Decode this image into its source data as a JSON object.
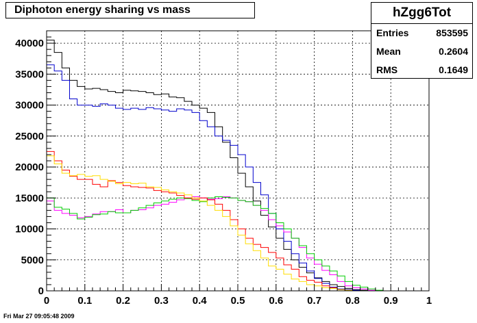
{
  "title": "Diphoton energy sharing vs mass",
  "stats": {
    "name": "hZgg6Tot",
    "rows": [
      {
        "key": "Entries",
        "value": "853595"
      },
      {
        "key": "Mean",
        "value": "0.2604"
      },
      {
        "key": "RMS",
        "value": "0.1649"
      }
    ]
  },
  "datestamp": "Fri Mar 27 09:05:48 2009",
  "chart_data": {
    "type": "line",
    "step": true,
    "title": "Diphoton energy sharing vs mass",
    "xlim": [
      0,
      1
    ],
    "ylim": [
      0,
      42000
    ],
    "xticks": [
      "0",
      "0.1",
      "0.2",
      "0.3",
      "0.4",
      "0.5",
      "0.6",
      "0.7",
      "0.8",
      "0.9",
      "1"
    ],
    "yticks": [
      "0",
      "5000",
      "10000",
      "15000",
      "20000",
      "25000",
      "30000",
      "35000",
      "40000"
    ],
    "grid": true,
    "bins": 50,
    "series": [
      {
        "color": "#000000",
        "values": [
          40500,
          38500,
          36000,
          34000,
          33000,
          32600,
          32700,
          32500,
          32200,
          32000,
          32400,
          32300,
          32200,
          32000,
          31700,
          31800,
          31300,
          31200,
          30600,
          30000,
          29500,
          28800,
          26500,
          24000,
          21500,
          19000,
          16800,
          14500,
          12200,
          10300,
          8500,
          6700,
          5000,
          3800,
          2900,
          2100,
          1500,
          1000,
          700,
          400,
          200,
          100,
          0,
          0,
          0,
          0,
          0,
          0,
          0,
          0
        ]
      },
      {
        "color": "#0000cc",
        "values": [
          36500,
          35500,
          34000,
          31000,
          30000,
          30000,
          29800,
          30200,
          30000,
          29500,
          29300,
          29500,
          29300,
          29600,
          29400,
          29200,
          29000,
          29400,
          29200,
          28800,
          27500,
          26500,
          25000,
          24300,
          23500,
          22000,
          20000,
          17500,
          15500,
          12500,
          10000,
          8000,
          6000,
          4500,
          3200,
          2000,
          1200,
          600,
          300,
          200,
          100,
          0,
          0,
          0,
          0,
          0,
          0,
          0,
          0,
          0
        ]
      },
      {
        "color": "#ff00ff",
        "values": [
          14500,
          13000,
          12500,
          12200,
          11800,
          12000,
          12400,
          12800,
          12800,
          13100,
          12600,
          13000,
          13100,
          13400,
          13800,
          14000,
          14300,
          14700,
          15000,
          15200,
          15000,
          14800,
          14900,
          15200,
          15000,
          14600,
          14400,
          13800,
          13000,
          11500,
          10500,
          9500,
          8500,
          7000,
          5300,
          4300,
          3300,
          2600,
          1500,
          800,
          500,
          300,
          100,
          0,
          0,
          0,
          0,
          0,
          0,
          0
        ]
      },
      {
        "color": "#00cc00",
        "values": [
          15000,
          13500,
          13200,
          12500,
          11600,
          11900,
          12300,
          12400,
          12800,
          12600,
          12600,
          13000,
          13400,
          13800,
          14200,
          14500,
          14800,
          15000,
          14900,
          14600,
          14400,
          15000,
          15200,
          15100,
          15000,
          14600,
          14400,
          13800,
          13300,
          12500,
          11000,
          10000,
          8500,
          7300,
          6000,
          5000,
          4000,
          3200,
          2400,
          1500,
          900,
          600,
          300,
          100,
          0,
          0,
          0,
          0,
          0,
          0
        ]
      },
      {
        "color": "#ff0000",
        "values": [
          22500,
          21000,
          19500,
          18500,
          18000,
          18000,
          17200,
          16800,
          17800,
          17500,
          17000,
          16800,
          16700,
          16600,
          16200,
          16000,
          15800,
          15400,
          15000,
          14800,
          15000,
          14700,
          14000,
          13000,
          11500,
          10000,
          8500,
          7500,
          7000,
          6200,
          5300,
          4200,
          3500,
          2300,
          1700,
          1400,
          800,
          500,
          200,
          100,
          0,
          0,
          0,
          0,
          0,
          0,
          0,
          0,
          0,
          0
        ]
      },
      {
        "color": "#ffdd00",
        "values": [
          21800,
          20500,
          19000,
          18600,
          18800,
          18500,
          18600,
          18000,
          17700,
          17300,
          17500,
          17300,
          17400,
          16800,
          16700,
          16300,
          16000,
          15800,
          15500,
          15000,
          14500,
          13800,
          13000,
          12000,
          10500,
          9000,
          7600,
          6500,
          5300,
          4000,
          3500,
          2700,
          1900,
          1500,
          1000,
          800,
          500,
          400,
          200,
          100,
          0,
          0,
          0,
          0,
          0,
          0,
          0,
          0,
          0,
          0
        ]
      }
    ]
  }
}
